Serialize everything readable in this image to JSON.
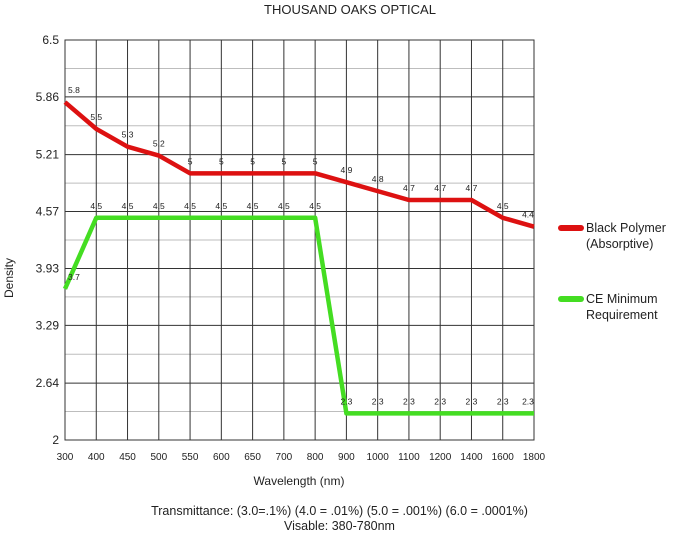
{
  "chart_data": {
    "type": "line",
    "title": "THOUSAND OAKS OPTICAL",
    "xlabel": "Wavelength (nm)",
    "ylabel": "Density",
    "x_categories": [
      "300",
      "400",
      "450",
      "500",
      "550",
      "600",
      "650",
      "700",
      "800",
      "900",
      "1000",
      "1100",
      "1200",
      "1400",
      "1600",
      "1800"
    ],
    "y_ticks": [
      "2",
      "2.64",
      "3.29",
      "3.93",
      "4.57",
      "5.21",
      "5.86",
      "6.5"
    ],
    "ylim": [
      2,
      6.5
    ],
    "grid": true,
    "legend_position": "right",
    "series": [
      {
        "name": "Black Polymer (Absorptive)",
        "legend_lines": [
          "Black Polymer",
          "(Absorptive)"
        ],
        "color": "#dd1111",
        "values": [
          5.8,
          5.5,
          5.3,
          5.2,
          5,
          5,
          5,
          5,
          5,
          4.9,
          4.8,
          4.7,
          4.7,
          4.7,
          4.5,
          4.4
        ],
        "labels": [
          "5.8",
          "5.5",
          "5.3",
          "5.2",
          "5",
          "5",
          "5",
          "5",
          "5",
          "4.9",
          "4.8",
          "4.7",
          "4.7",
          "4.7",
          "4.5",
          "4.4"
        ]
      },
      {
        "name": "CE Minimum Requirement",
        "legend_lines": [
          "CE Minimum",
          "Requirement"
        ],
        "color": "#44dd22",
        "values": [
          3.7,
          4.5,
          4.5,
          4.5,
          4.5,
          4.5,
          4.5,
          4.5,
          4.5,
          2.3,
          2.3,
          2.3,
          2.3,
          2.3,
          2.3,
          2.3
        ],
        "labels": [
          "3.7",
          "4.5",
          "4.5",
          "4.5",
          "4.5",
          "4.5",
          "4.5",
          "4.5",
          "4.5",
          "2.3",
          "2.3",
          "2.3",
          "2.3",
          "2.3",
          "2.3",
          "2.3"
        ]
      }
    ],
    "annotations": [
      "Transmittance: (3.0=.1%) (4.0 = .01%) (5.0 = .001%) (6.0 = .0001%)",
      "Visable: 380-780nm"
    ]
  }
}
